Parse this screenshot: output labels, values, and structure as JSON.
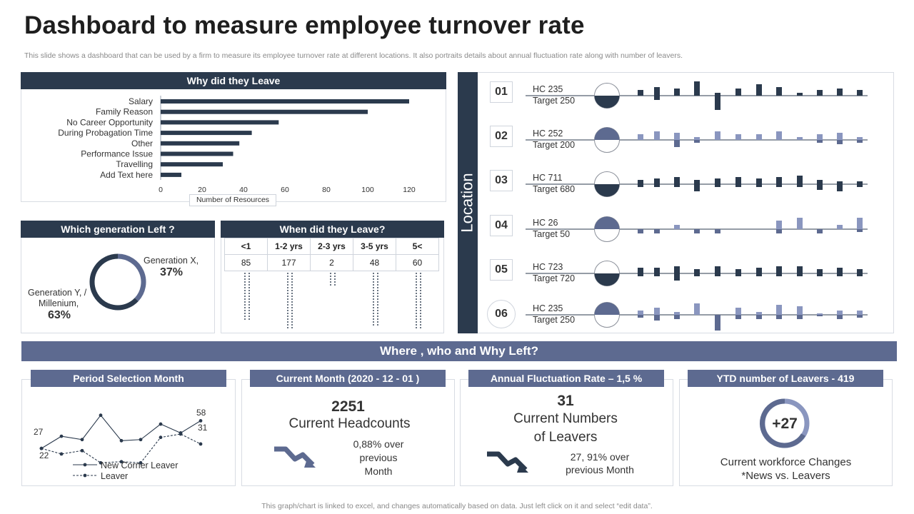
{
  "title": "Dashboard to measure employee turnover rate",
  "subtitle": "This slide shows a dashboard that can be used by a firm to measure its employee turnover rate at different locations. It also portraits details about annual fluctuation rate along with number of leavers.",
  "why_leave": {
    "header": "Why did they Leave",
    "axis_title": "Number of Resources"
  },
  "generation": {
    "header": "Which generation Left ?",
    "gen_x_label": "Generation  X,",
    "gen_x_value": "37%",
    "gen_y_label_1": "Generation  Y, /",
    "gen_y_label_2": "Millenium,",
    "gen_y_value": "63%"
  },
  "when_leave": {
    "header": "When did they Leave?",
    "columns": [
      "<1",
      "1-2 yrs",
      "2-3 yrs",
      "3-5 yrs",
      "5<"
    ],
    "values": [
      "85",
      "177",
      "2",
      "48",
      "60"
    ]
  },
  "location": {
    "label": "Location",
    "rows": [
      {
        "num": "01",
        "hc": "HC 235",
        "target": "Target  250"
      },
      {
        "num": "02",
        "hc": "HC 252",
        "target": "Target  200"
      },
      {
        "num": "03",
        "hc": "HC 711",
        "target": "Target  680"
      },
      {
        "num": "04",
        "hc": "HC 26",
        "target": "Target  50"
      },
      {
        "num": "05",
        "hc": "HC 723",
        "target": "Target  720"
      },
      {
        "num": "06",
        "hc": "HC 235",
        "target": "Target  250"
      }
    ]
  },
  "band_title": "Where , who and Why Left?",
  "period": {
    "header": "Period Selection Month",
    "label_27": "27",
    "label_22": "22",
    "label_58": "58",
    "label_31": "31",
    "legend_1": "New Corner  Leaver",
    "legend_2": "Leaver"
  },
  "current_month": {
    "header": "Current Month (2020 - 12 - 01 )",
    "value": "2251",
    "label": "Current  Headcounts",
    "change_1": "0,88% over",
    "change_2": "previous",
    "change_3": "Month"
  },
  "annual": {
    "header": "Annual Fluctuation Rate – 1,5 %",
    "value": "31",
    "label_1": "Current  Numbers",
    "label_2": "of Leavers",
    "change_1": "27, 91% over",
    "change_2": "previous Month"
  },
  "ytd": {
    "header": "YTD number of Leavers - 419",
    "value": "+27",
    "label_1": "Current  workforce Changes",
    "label_2": "*News vs. Leavers"
  },
  "footer": "This graph/chart is linked to excel,  and changes automatically based on data. Just left click on it and select “edit data”.",
  "colors": {
    "dark": "#2b3a4d",
    "accent": "#5d6a90",
    "light": "#8a96bf"
  },
  "chart_data": [
    {
      "type": "bar",
      "orientation": "horizontal",
      "categories": [
        "Salary",
        "Family Reason",
        "No Career Opportunity",
        "During Probagation Time",
        "Other",
        "Performance Issue",
        "Travelling",
        "Add Text here"
      ],
      "values": [
        120,
        100,
        57,
        44,
        38,
        35,
        30,
        10
      ],
      "xlabel": "Number of Resources",
      "xlim": [
        0,
        140
      ],
      "xticks": [
        "0",
        "20",
        "40",
        "60",
        "80",
        "100",
        "120"
      ]
    },
    {
      "type": "pie",
      "categories": [
        "Generation X",
        "Generation Y / Millenium"
      ],
      "values": [
        37,
        63
      ]
    },
    {
      "type": "line",
      "x": [
        1,
        2,
        3,
        4,
        5,
        6,
        7,
        8,
        9
      ],
      "series": [
        {
          "name": "New Corner  Leaver",
          "values": [
            27,
            38,
            35,
            57,
            34,
            35,
            49,
            41,
            52
          ]
        },
        {
          "name": "Leaver",
          "values": [
            27,
            22,
            25,
            14,
            15,
            14,
            37,
            40,
            31
          ]
        }
      ]
    }
  ]
}
